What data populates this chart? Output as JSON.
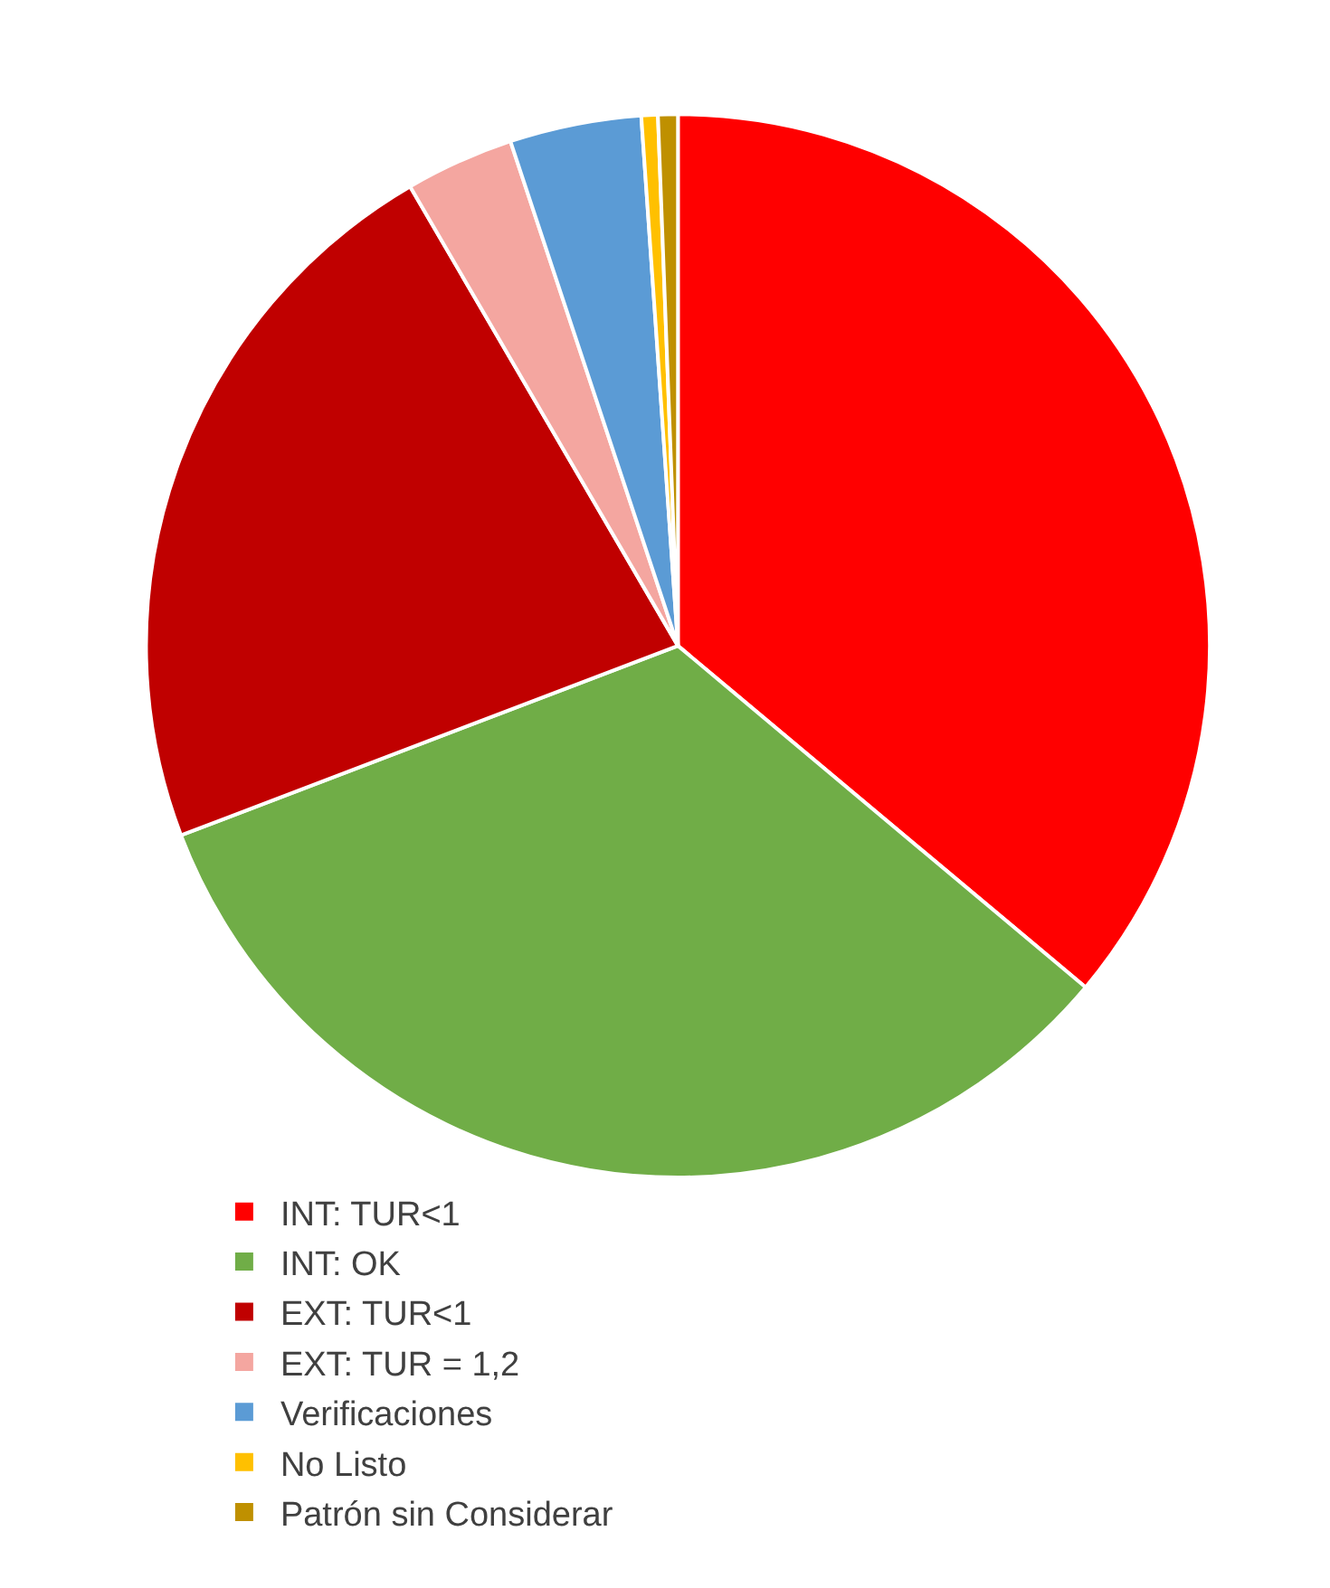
{
  "chart_data": {
    "type": "pie",
    "categories": [
      "INT: TUR<1",
      "INT: OK",
      "EXT: TUR<1",
      "EXT: TUR = 1,2",
      "Verificaciones",
      "No Listo",
      "Patrón sin Considerar"
    ],
    "values": [
      36.1,
      33.1,
      22.4,
      3.3,
      4.0,
      0.5,
      0.6
    ],
    "colors": [
      "#ff0000",
      "#70ad47",
      "#c00000",
      "#f4a6a0",
      "#5b9bd5",
      "#ffc000",
      "#bf9000"
    ],
    "legend": "bottom"
  }
}
